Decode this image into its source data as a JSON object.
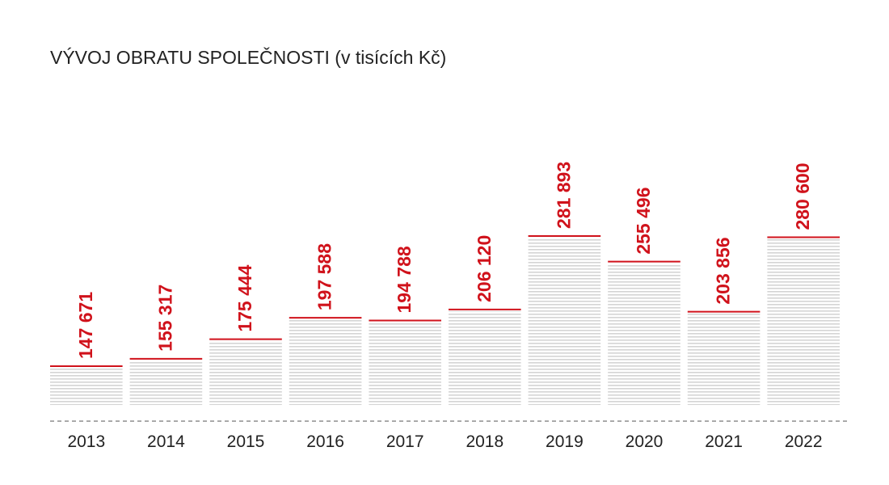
{
  "title": "VÝVOJ OBRATU SPOLEČNOSTI (v tisících Kč)",
  "colors": {
    "accent": "#d0121b",
    "bar_stripe": "#d4d4d4",
    "text": "#222222",
    "baseline": "#777777"
  },
  "chart_data": {
    "type": "bar",
    "title": "VÝVOJ OBRATU SPOLEČNOSTI (v tisících Kč)",
    "xlabel": "",
    "ylabel": "",
    "categories": [
      "2013",
      "2014",
      "2015",
      "2016",
      "2017",
      "2018",
      "2019",
      "2020",
      "2021",
      "2022"
    ],
    "values": [
      147671,
      155317,
      175444,
      197588,
      194788,
      206120,
      281893,
      255496,
      203856,
      280600
    ],
    "value_labels": [
      "147 671",
      "155 317",
      "175 444",
      "197 588",
      "194 788",
      "206 120",
      "281 893",
      "255 496",
      "203 856",
      "280 600"
    ],
    "ylim": [
      125000,
      300000
    ],
    "grid": false,
    "legend": "none"
  }
}
